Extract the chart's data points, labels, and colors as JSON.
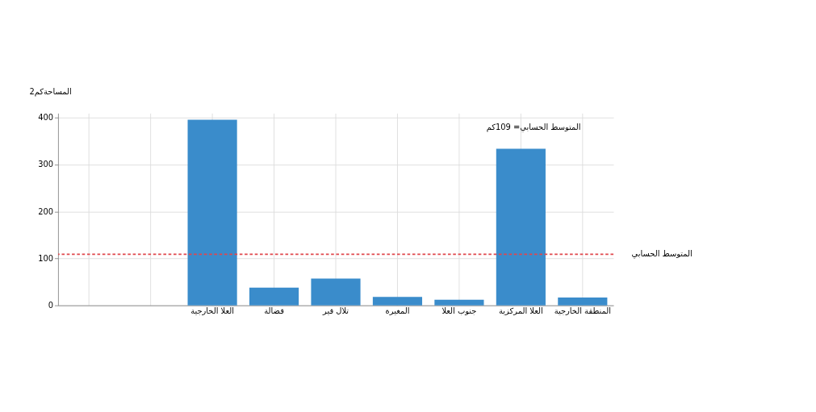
{
  "chart_data": {
    "type": "bar",
    "ylabel": "المساحةكم2",
    "categories": [
      null,
      null,
      "العلا الخارجية",
      "قضالة",
      "تلال قير",
      "المغيرة",
      "جنوب العلا",
      "العلا المركزية",
      "المنطقة الخارجية"
    ],
    "values": [
      null,
      null,
      396,
      38,
      57,
      18,
      12,
      334,
      17
    ],
    "color": "#3a8ccb",
    "ylim": [
      0,
      410
    ],
    "yticks": [
      0,
      100,
      200,
      300,
      400
    ],
    "grid": true,
    "ref_lines": [
      {
        "axis": "y",
        "value": 109,
        "label": "المتوسط الحسابي",
        "color": "#e0474c",
        "line_style": "dashed"
      }
    ],
    "annotations": [
      "المتوسط الحسابي= 109كم"
    ]
  }
}
